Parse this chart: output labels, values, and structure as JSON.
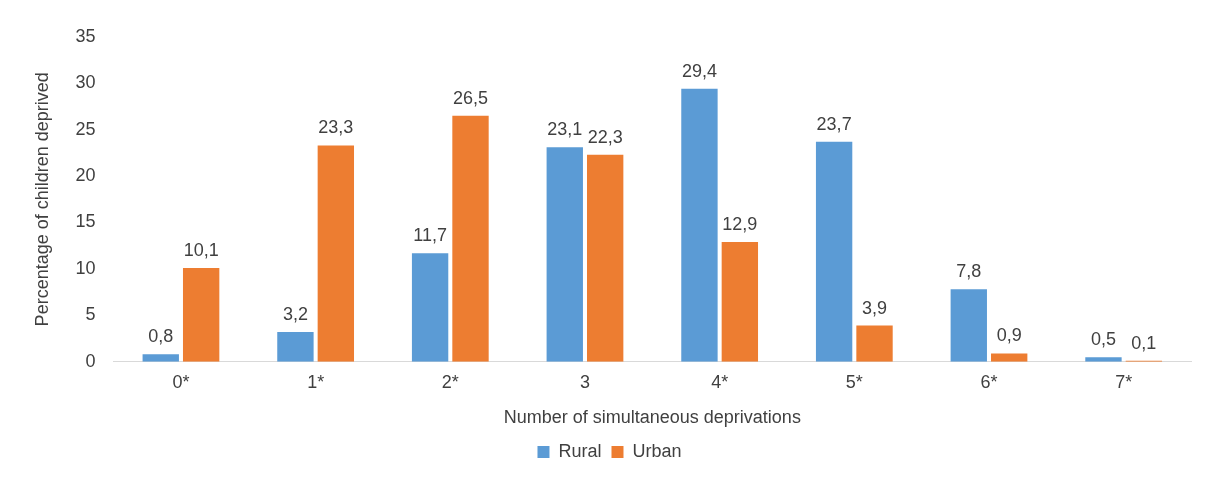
{
  "chart_data": {
    "type": "bar",
    "xlabel": "Number of simultaneous deprivations",
    "ylabel": "Percentage of children deprived",
    "categories": [
      "0*",
      "1*",
      "2*",
      "3",
      "4*",
      "5*",
      "6*",
      "7*"
    ],
    "series": [
      {
        "name": "Rural",
        "color": "#5b9bd5",
        "values": [
          0.8,
          3.2,
          11.7,
          23.1,
          29.4,
          23.7,
          7.8,
          0.5
        ],
        "value_labels": [
          "0,8",
          "3,2",
          "11,7",
          "23,1",
          "29,4",
          "23,7",
          "7,8",
          "0,5"
        ]
      },
      {
        "name": "Urban",
        "color": "#ed7d31",
        "values": [
          10.1,
          23.3,
          26.5,
          22.3,
          12.9,
          3.9,
          0.9,
          0.1
        ],
        "value_labels": [
          "10,1",
          "23,3",
          "26,5",
          "22,3",
          "12,9",
          "3,9",
          "0,9",
          "0,1"
        ]
      }
    ],
    "ylim": [
      0,
      35
    ],
    "yticks": [
      0,
      5,
      10,
      15,
      20,
      25,
      30,
      35
    ],
    "grid": false,
    "legend": "bottom"
  }
}
